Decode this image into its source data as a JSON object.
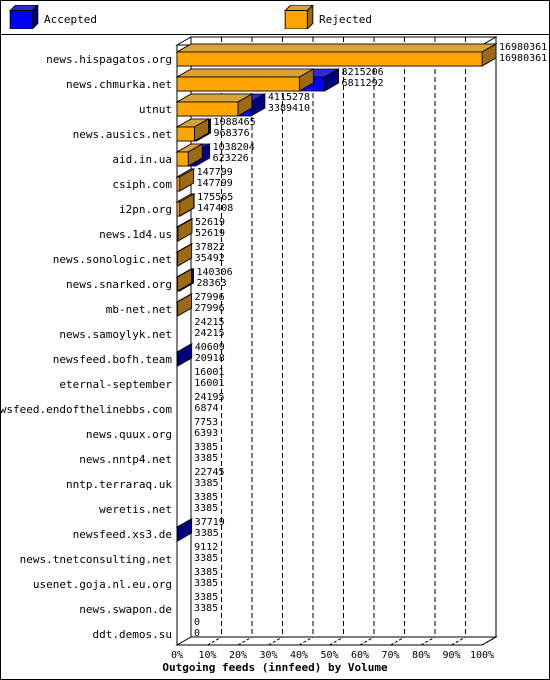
{
  "legend": {
    "accepted_label": "Accepted",
    "rejected_label": "Rejected"
  },
  "colors": {
    "accepted_front": "#0000ff",
    "accepted_top": "#2b2bd6",
    "accepted_side": "#000080",
    "rejected_front": "#ffa500",
    "rejected_top": "#d9a33a",
    "rejected_side": "#9c6a14",
    "background": "#ffffff",
    "grid": "#000000"
  },
  "chart_data": {
    "type": "bar",
    "orientation": "horizontal",
    "style": "3d-stacked",
    "title": "Outgoing feeds (innfeed) by Volume",
    "xlim": [
      0,
      100
    ],
    "x_unit": "%",
    "x_ticks": [
      "0%",
      "10%",
      "20%",
      "30%",
      "40%",
      "50%",
      "60%",
      "70%",
      "80%",
      "90%",
      "100%"
    ],
    "grid": true,
    "legend_position": "top",
    "max_value": 16980361,
    "categories": [
      "news.hispagatos.org",
      "news.chmurka.net",
      "utnut",
      "news.ausics.net",
      "aid.in.ua",
      "csiph.com",
      "i2pn.org",
      "news.1d4.us",
      "news.sonologic.net",
      "news.snarked.org",
      "mb-net.net",
      "news.samoylyk.net",
      "newsfeed.bofh.team",
      "eternal-september",
      "newsfeed.endofthelinebbs.com",
      "news.quux.org",
      "news.nntp4.net",
      "nntp.terraraq.uk",
      "weretis.net",
      "newsfeed.xs3.de",
      "news.tnetconsulting.net",
      "usenet.goja.nl.eu.org",
      "news.swapon.de",
      "ddt.demos.su"
    ],
    "series": [
      {
        "name": "Accepted",
        "values": [
          16980361,
          8215206,
          4115278,
          1088465,
          1038204,
          147799,
          175565,
          52619,
          37822,
          140306,
          27996,
          24215,
          40609,
          16001,
          24195,
          7753,
          3385,
          22745,
          3385,
          37719,
          9112,
          3385,
          3385,
          0
        ]
      },
      {
        "name": "Rejected",
        "values": [
          16980361,
          6811292,
          3389410,
          968376,
          623226,
          147799,
          147408,
          52619,
          35492,
          28363,
          27996,
          24215,
          20918,
          16001,
          6874,
          6393,
          3385,
          3385,
          3385,
          3385,
          3385,
          3385,
          3385,
          0
        ]
      }
    ]
  }
}
